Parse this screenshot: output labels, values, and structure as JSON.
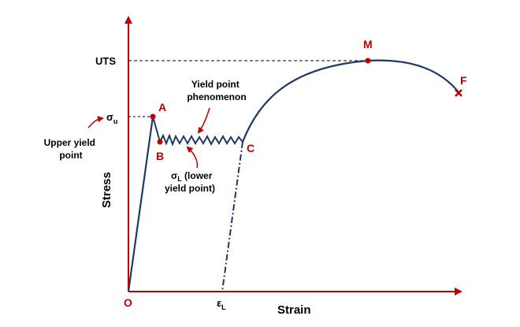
{
  "axes": {
    "x_label": "Strain",
    "y_label": "Stress",
    "origin_label": "O",
    "axis_color": "#c00000",
    "curve_color": "#1f3864"
  },
  "levels": {
    "uts_label": "UTS",
    "sigma_u_symbol": "σ",
    "sigma_u_sub": "u",
    "epsilon_l_symbol": "ε",
    "epsilon_l_sub": "L"
  },
  "points": {
    "A": "A",
    "B": "B",
    "C": "C",
    "M": "M",
    "F": "F"
  },
  "annotations": {
    "yield_phenomenon_line1": "Yield point",
    "yield_phenomenon_line2": "phenomenon",
    "upper_yield_line1": "Upper yield",
    "upper_yield_line2": "point",
    "lower_yield_sigma": "σ",
    "lower_yield_sub": "L",
    "lower_yield_line1_rest": " (lower",
    "lower_yield_line2": "yield point)"
  }
}
